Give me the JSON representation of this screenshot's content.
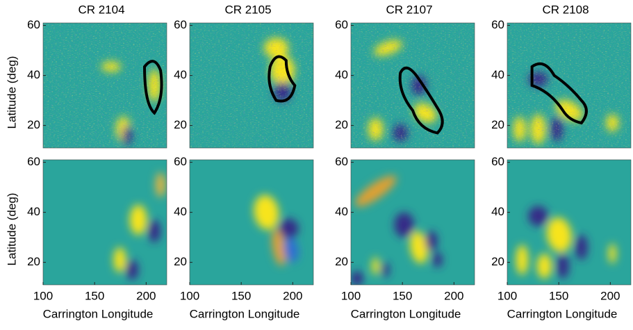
{
  "chart_data": [
    {
      "type": "heatmap",
      "title": "CR 2104",
      "ylabel": "Latitude (deg)",
      "ylim": [
        11,
        61
      ],
      "yticks": [
        20,
        40,
        60
      ]
    },
    {
      "type": "heatmap",
      "title": "CR 2105",
      "ylim": [
        11,
        61
      ],
      "yticks": [
        20,
        40,
        60
      ]
    },
    {
      "type": "heatmap",
      "title": "CR 2107",
      "ylim": [
        11,
        61
      ],
      "yticks": [
        20,
        40,
        60
      ]
    },
    {
      "type": "heatmap",
      "title": "CR 2108",
      "ylim": [
        11,
        61
      ],
      "yticks": [
        20,
        40,
        60
      ]
    },
    {
      "type": "heatmap",
      "ylabel": "Latitude (deg)",
      "xlabel": "Carrington Longitude",
      "xlim": [
        100,
        220
      ],
      "xticks": [
        100,
        150,
        200
      ],
      "ylim": [
        11,
        61
      ],
      "yticks": [
        20,
        40,
        60
      ]
    },
    {
      "type": "heatmap",
      "xlabel": "Carrington Longitude",
      "xlim": [
        100,
        220
      ],
      "xticks": [
        100,
        150,
        200
      ],
      "ylim": [
        11,
        61
      ],
      "yticks": [
        20,
        40,
        60
      ]
    },
    {
      "type": "heatmap",
      "xlabel": "Carrington Longitude",
      "xlim": [
        100,
        220
      ],
      "xticks": [
        100,
        150,
        200
      ],
      "ylim": [
        11,
        61
      ],
      "yticks": [
        20,
        40,
        60
      ]
    },
    {
      "type": "heatmap",
      "xlabel": "Carrington Longitude",
      "xlim": [
        100,
        220
      ],
      "xticks": [
        100,
        150,
        200
      ],
      "ylim": [
        11,
        61
      ],
      "yticks": [
        20,
        40,
        60
      ]
    }
  ]
}
